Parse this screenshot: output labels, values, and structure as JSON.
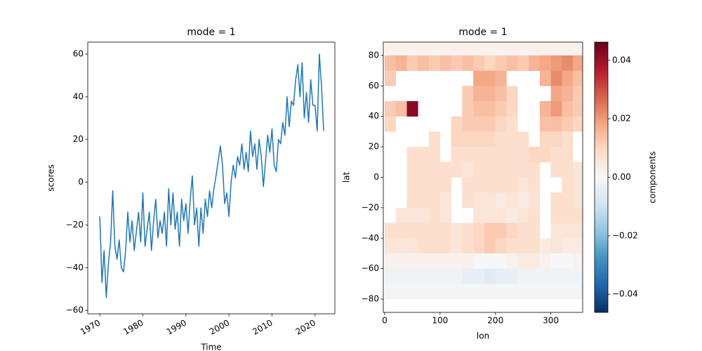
{
  "chart_data": [
    {
      "type": "line",
      "title": "mode = 1",
      "xlabel": "Time",
      "ylabel": "scores",
      "x": [
        1970,
        1970.5,
        1971,
        1971.5,
        1972,
        1972.5,
        1973,
        1973.5,
        1974,
        1974.5,
        1975,
        1975.5,
        1976,
        1976.5,
        1977,
        1977.5,
        1978,
        1978.5,
        1979,
        1979.5,
        1980,
        1980.5,
        1981,
        1981.5,
        1982,
        1982.5,
        1983,
        1983.5,
        1984,
        1984.5,
        1985,
        1985.5,
        1986,
        1986.5,
        1987,
        1987.5,
        1988,
        1988.5,
        1989,
        1989.5,
        1990,
        1990.5,
        1991,
        1991.5,
        1992,
        1992.5,
        1993,
        1993.5,
        1994,
        1994.5,
        1995,
        1995.5,
        1996,
        1996.5,
        1997,
        1997.5,
        1998,
        1998.5,
        1999,
        1999.5,
        2000,
        2000.5,
        2001,
        2001.5,
        2002,
        2002.5,
        2003,
        2003.5,
        2004,
        2004.5,
        2005,
        2005.5,
        2006,
        2006.5,
        2007,
        2007.5,
        2008,
        2008.5,
        2009,
        2009.5,
        2010,
        2010.5,
        2011,
        2011.5,
        2012,
        2012.5,
        2013,
        2013.5,
        2014,
        2014.5,
        2015,
        2015.5,
        2016,
        2016.5,
        2017,
        2017.5,
        2018,
        2018.5,
        2019,
        2019.5,
        2020,
        2020.5,
        2021,
        2021.5,
        2022
      ],
      "series": [
        {
          "name": "scores",
          "color": "#1f77b4",
          "values": [
            -16,
            -47,
            -32,
            -54,
            -38,
            -28,
            -4,
            -30,
            -36,
            -27,
            -40,
            -42,
            -32,
            -14,
            -28,
            -18,
            -32,
            -23,
            -14,
            -28,
            -5,
            -30,
            -22,
            -14,
            -32,
            -18,
            -8,
            -26,
            -18,
            -24,
            -14,
            -30,
            -3,
            -20,
            -5,
            -22,
            -14,
            -30,
            -8,
            -18,
            -10,
            -24,
            -8,
            3,
            -20,
            -12,
            -30,
            -12,
            -24,
            -8,
            -16,
            -4,
            -12,
            -3,
            3,
            10,
            17,
            8,
            -10,
            -5,
            -16,
            0,
            8,
            2,
            12,
            8,
            18,
            6,
            14,
            5,
            24,
            12,
            18,
            6,
            20,
            12,
            -2,
            10,
            22,
            14,
            25,
            8,
            5,
            20,
            18,
            28,
            22,
            40,
            26,
            38,
            36,
            48,
            55,
            40,
            56,
            30,
            42,
            28,
            48,
            36,
            36,
            24,
            60,
            45,
            24
          ]
        }
      ],
      "xlim": [
        1967.2,
        2024.6
      ],
      "xticks": [
        1970,
        1980,
        1990,
        2000,
        2010,
        2020
      ],
      "ylim": [
        -61.6,
        65.6
      ],
      "yticks": [
        {
          "value": -60,
          "label": "−60"
        },
        {
          "value": -40,
          "label": "−40"
        },
        {
          "value": -20,
          "label": "−20"
        },
        0,
        20,
        40,
        60
      ]
    },
    {
      "type": "heatmap",
      "title": "mode = 1",
      "xlabel": "lon",
      "ylabel": "lat",
      "x": [
        10,
        30,
        50,
        70,
        90,
        110,
        130,
        150,
        170,
        190,
        210,
        230,
        250,
        270,
        290,
        310,
        330,
        350
      ],
      "y": [
        85,
        75,
        65,
        55,
        45,
        35,
        25,
        15,
        5,
        -5,
        -15,
        -25,
        -35,
        -45,
        -55,
        -65,
        -75,
        -85
      ],
      "values": [
        [
          0.002,
          0.002,
          0.002,
          0.002,
          0.002,
          0.002,
          0.002,
          0.002,
          0.002,
          0.002,
          0.002,
          0.002,
          0.002,
          0.002,
          0.002,
          0.002,
          0.002,
          0.002
        ],
        [
          0.014,
          0.016,
          0.012,
          0.014,
          0.012,
          0.014,
          0.012,
          0.014,
          0.012,
          0.01,
          0.012,
          0.014,
          0.012,
          0.016,
          0.018,
          0.02,
          0.022,
          0.018
        ],
        [
          0.012,
          null,
          null,
          null,
          null,
          null,
          null,
          null,
          0.018,
          0.018,
          0.016,
          null,
          null,
          null,
          0.016,
          0.022,
          0.018,
          0.014
        ],
        [
          null,
          null,
          null,
          null,
          null,
          null,
          null,
          0.012,
          0.016,
          0.016,
          0.014,
          0.01,
          null,
          null,
          null,
          0.018,
          0.016,
          0.012
        ],
        [
          0.012,
          0.014,
          0.042,
          null,
          null,
          null,
          null,
          0.012,
          0.014,
          0.014,
          0.012,
          0.01,
          null,
          null,
          0.016,
          0.02,
          0.014,
          0.012
        ],
        [
          0.01,
          null,
          null,
          null,
          null,
          null,
          0.01,
          0.012,
          0.012,
          0.012,
          0.01,
          0.008,
          null,
          null,
          0.014,
          0.014,
          0.012,
          0.01
        ],
        [
          null,
          null,
          null,
          null,
          0.008,
          null,
          0.01,
          0.01,
          0.01,
          0.01,
          0.008,
          0.008,
          0.008,
          null,
          0.01,
          0.01,
          0.008,
          null
        ],
        [
          null,
          null,
          0.008,
          0.008,
          0.008,
          null,
          0.008,
          0.008,
          0.008,
          0.008,
          0.008,
          0.008,
          0.008,
          0.01,
          0.01,
          0.008,
          0.008,
          null
        ],
        [
          null,
          null,
          0.008,
          0.008,
          0.008,
          0.008,
          0.008,
          0.006,
          0.008,
          0.008,
          0.008,
          0.008,
          0.008,
          0.008,
          null,
          0.008,
          0.008,
          0.006
        ],
        [
          null,
          null,
          0.008,
          0.008,
          0.008,
          0.008,
          null,
          0.008,
          0.008,
          0.008,
          0.008,
          0.008,
          0.006,
          0.008,
          null,
          null,
          0.008,
          0.006
        ],
        [
          null,
          null,
          0.008,
          0.008,
          0.008,
          0.006,
          null,
          0.008,
          0.006,
          0.006,
          0.004,
          0.006,
          0.004,
          0.006,
          null,
          0.008,
          0.008,
          0.006
        ],
        [
          null,
          0.006,
          0.006,
          0.006,
          0.008,
          0.006,
          null,
          null,
          0.006,
          0.006,
          0.006,
          0.004,
          0.006,
          0.008,
          null,
          0.008,
          0.008,
          0.008
        ],
        [
          0.008,
          0.008,
          0.008,
          0.008,
          0.008,
          0.008,
          0.006,
          0.008,
          0.01,
          0.012,
          0.012,
          0.01,
          0.008,
          0.008,
          null,
          0.006,
          0.006,
          0.006
        ],
        [
          0.006,
          0.006,
          0.006,
          0.008,
          0.008,
          0.008,
          0.006,
          0.008,
          0.01,
          0.012,
          0.01,
          0.008,
          0.008,
          0.008,
          0.004,
          0.006,
          0.004,
          0.004
        ],
        [
          0.002,
          0.002,
          0.002,
          0.002,
          0.002,
          0.002,
          0.002,
          0.002,
          0,
          0,
          0,
          0.002,
          0.004,
          0.004,
          0.002,
          0,
          0,
          0.002
        ],
        [
          -0.002,
          -0.002,
          -0.002,
          -0.002,
          -0.002,
          -0.002,
          -0.002,
          -0.004,
          -0.004,
          -0.006,
          -0.004,
          -0.004,
          -0.002,
          -0.002,
          -0.002,
          -0.002,
          -0.002,
          -0.002
        ],
        [
          -0.001,
          -0.001,
          -0.001,
          -0.001,
          -0.001,
          -0.001,
          -0.001,
          -0.001,
          -0.001,
          -0.001,
          -0.001,
          -0.001,
          -0.001,
          -0.001,
          -0.001,
          -0.001,
          -0.001,
          -0.001
        ],
        [
          null,
          null,
          null,
          null,
          null,
          null,
          null,
          null,
          null,
          null,
          null,
          null,
          null,
          null,
          null,
          null,
          null,
          null
        ]
      ],
      "xlim": [
        -2.5,
        357.5
      ],
      "xticks": [
        0,
        100,
        200,
        300
      ],
      "ylim": [
        -88.75,
        88.75
      ],
      "yticks": [
        {
          "value": -80,
          "label": "−80"
        },
        {
          "value": -60,
          "label": "−60"
        },
        {
          "value": -40,
          "label": "−40"
        },
        {
          "value": -20,
          "label": "−20"
        },
        0,
        20,
        40,
        60,
        80
      ],
      "colormap": [
        "#053061",
        "#2166ac",
        "#4393c3",
        "#92c5de",
        "#d1e5f0",
        "#f7f7f7",
        "#fddbc7",
        "#f4a582",
        "#d6604d",
        "#b2182b",
        "#67001f"
      ],
      "colorbar": {
        "label": "components",
        "clim": [
          -0.0462,
          0.0462
        ],
        "ticks": [
          {
            "value": -0.04,
            "label": "−0.04"
          },
          {
            "value": -0.02,
            "label": "−0.02"
          },
          {
            "value": 0,
            "label": "0.00"
          },
          {
            "value": 0.02,
            "label": "0.02"
          },
          {
            "value": 0.04,
            "label": "0.04"
          }
        ]
      }
    }
  ]
}
